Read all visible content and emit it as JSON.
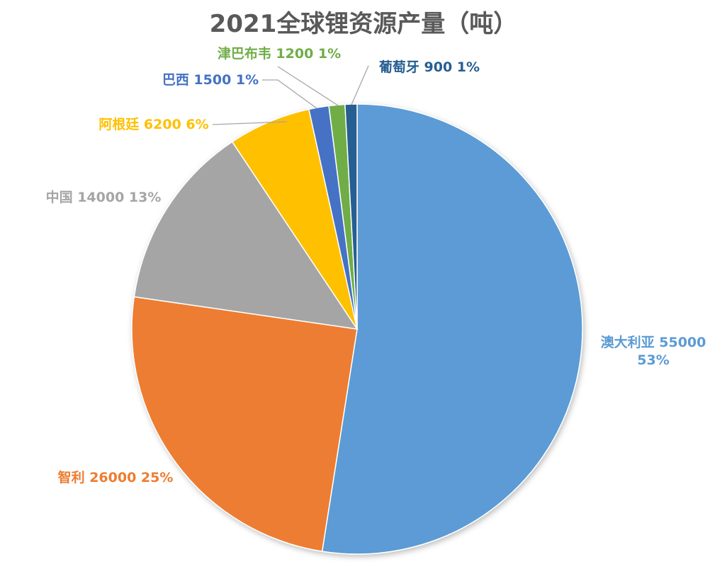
{
  "chart_data": {
    "type": "pie",
    "title": "2021全球锂资源产量（吨）",
    "legend": "none",
    "slices": [
      {
        "name": "澳大利亚",
        "value": 55000,
        "percent": "53%",
        "color": "#5B9BD5"
      },
      {
        "name": "智利",
        "value": 26000,
        "percent": "25%",
        "color": "#ED7D31"
      },
      {
        "name": "中国",
        "value": 14000,
        "percent": "13%",
        "color": "#A5A5A5"
      },
      {
        "name": "阿根廷",
        "value": 6200,
        "percent": "6%",
        "color": "#FFC000"
      },
      {
        "name": "巴西",
        "value": 1500,
        "percent": "1%",
        "color": "#4472C4"
      },
      {
        "name": "津巴布韦",
        "value": 1200,
        "percent": "1%",
        "color": "#70AD47"
      },
      {
        "name": "葡萄牙",
        "value": 900,
        "percent": "1%",
        "color": "#255E91"
      }
    ],
    "labels": [
      {
        "lines": [
          "澳大利亚 55000",
          "53%"
        ]
      },
      {
        "lines": [
          "智利 26000 25%"
        ]
      },
      {
        "lines": [
          "中国 14000 13%"
        ]
      },
      {
        "lines": [
          "阿根廷 6200 6%"
        ]
      },
      {
        "lines": [
          "巴西 1500 1%"
        ]
      },
      {
        "lines": [
          "津巴布韦 1200 1%"
        ]
      },
      {
        "lines": [
          "葡萄牙 900 1%"
        ]
      }
    ]
  }
}
